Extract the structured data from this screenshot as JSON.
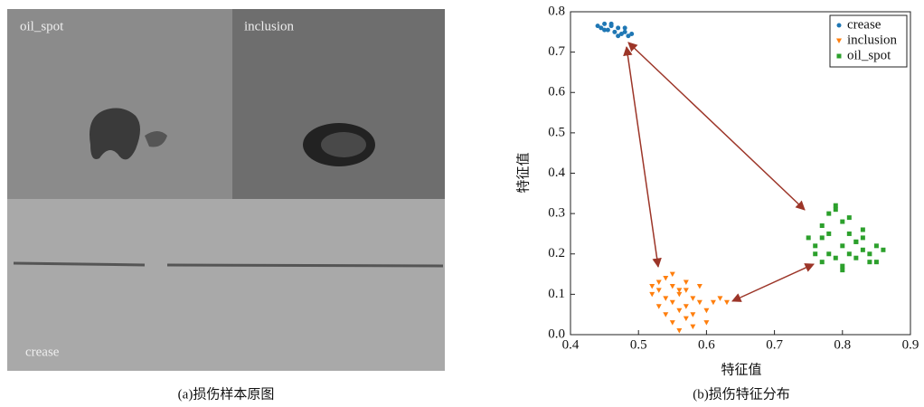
{
  "image_panel": {
    "labels": [
      "oil_spot",
      "inclusion",
      "crease"
    ],
    "caption": "(a)损伤样本原图"
  },
  "chart_data": {
    "type": "scatter",
    "caption": "(b)损伤特征分布",
    "xlabel": "特征值",
    "ylabel": "特征值",
    "xlim": [
      0.4,
      0.9
    ],
    "ylim": [
      0,
      0.8
    ],
    "xticks": [
      0.4,
      0.5,
      0.6,
      0.7,
      0.8,
      0.9
    ],
    "yticks": [
      {
        "value": 0,
        "label": "0.0"
      },
      0.1,
      0.2,
      0.3,
      0.4,
      0.5,
      0.6,
      0.7,
      0.8
    ],
    "legend": "upper right",
    "series": [
      {
        "name": "crease",
        "color": "#1f77b4",
        "marker": "o",
        "x": [
          0.44,
          0.445,
          0.45,
          0.455,
          0.46,
          0.465,
          0.47,
          0.475,
          0.48,
          0.485,
          0.45,
          0.46,
          0.47,
          0.48,
          0.49
        ],
        "y": [
          0.765,
          0.76,
          0.77,
          0.755,
          0.765,
          0.75,
          0.76,
          0.745,
          0.75,
          0.74,
          0.755,
          0.77,
          0.74,
          0.76,
          0.745
        ]
      },
      {
        "name": "inclusion",
        "color": "#ff7f0e",
        "marker": "v",
        "x": [
          0.52,
          0.53,
          0.54,
          0.55,
          0.56,
          0.57,
          0.58,
          0.59,
          0.53,
          0.54,
          0.55,
          0.56,
          0.57,
          0.58,
          0.6,
          0.61,
          0.62,
          0.63,
          0.52,
          0.55,
          0.57,
          0.59,
          0.54,
          0.56,
          0.58,
          0.53,
          0.55,
          0.57,
          0.6,
          0.56
        ],
        "y": [
          0.1,
          0.13,
          0.14,
          0.12,
          0.1,
          0.11,
          0.09,
          0.08,
          0.07,
          0.05,
          0.03,
          0.06,
          0.04,
          0.02,
          0.06,
          0.08,
          0.09,
          0.08,
          0.12,
          0.15,
          0.13,
          0.12,
          0.09,
          0.01,
          0.05,
          0.11,
          0.08,
          0.07,
          0.03,
          0.11
        ]
      },
      {
        "name": "oil_spot",
        "color": "#2ca02c",
        "marker": "s",
        "x": [
          0.75,
          0.76,
          0.77,
          0.78,
          0.79,
          0.8,
          0.81,
          0.82,
          0.83,
          0.84,
          0.85,
          0.86,
          0.77,
          0.78,
          0.79,
          0.8,
          0.81,
          0.82,
          0.83,
          0.84,
          0.76,
          0.78,
          0.8,
          0.82,
          0.79,
          0.81,
          0.83,
          0.85,
          0.77,
          0.8
        ],
        "y": [
          0.24,
          0.22,
          0.27,
          0.3,
          0.32,
          0.28,
          0.25,
          0.23,
          0.21,
          0.2,
          0.22,
          0.21,
          0.18,
          0.2,
          0.19,
          0.17,
          0.2,
          0.23,
          0.24,
          0.18,
          0.2,
          0.25,
          0.22,
          0.19,
          0.31,
          0.29,
          0.26,
          0.18,
          0.24,
          0.16
        ]
      }
    ]
  }
}
